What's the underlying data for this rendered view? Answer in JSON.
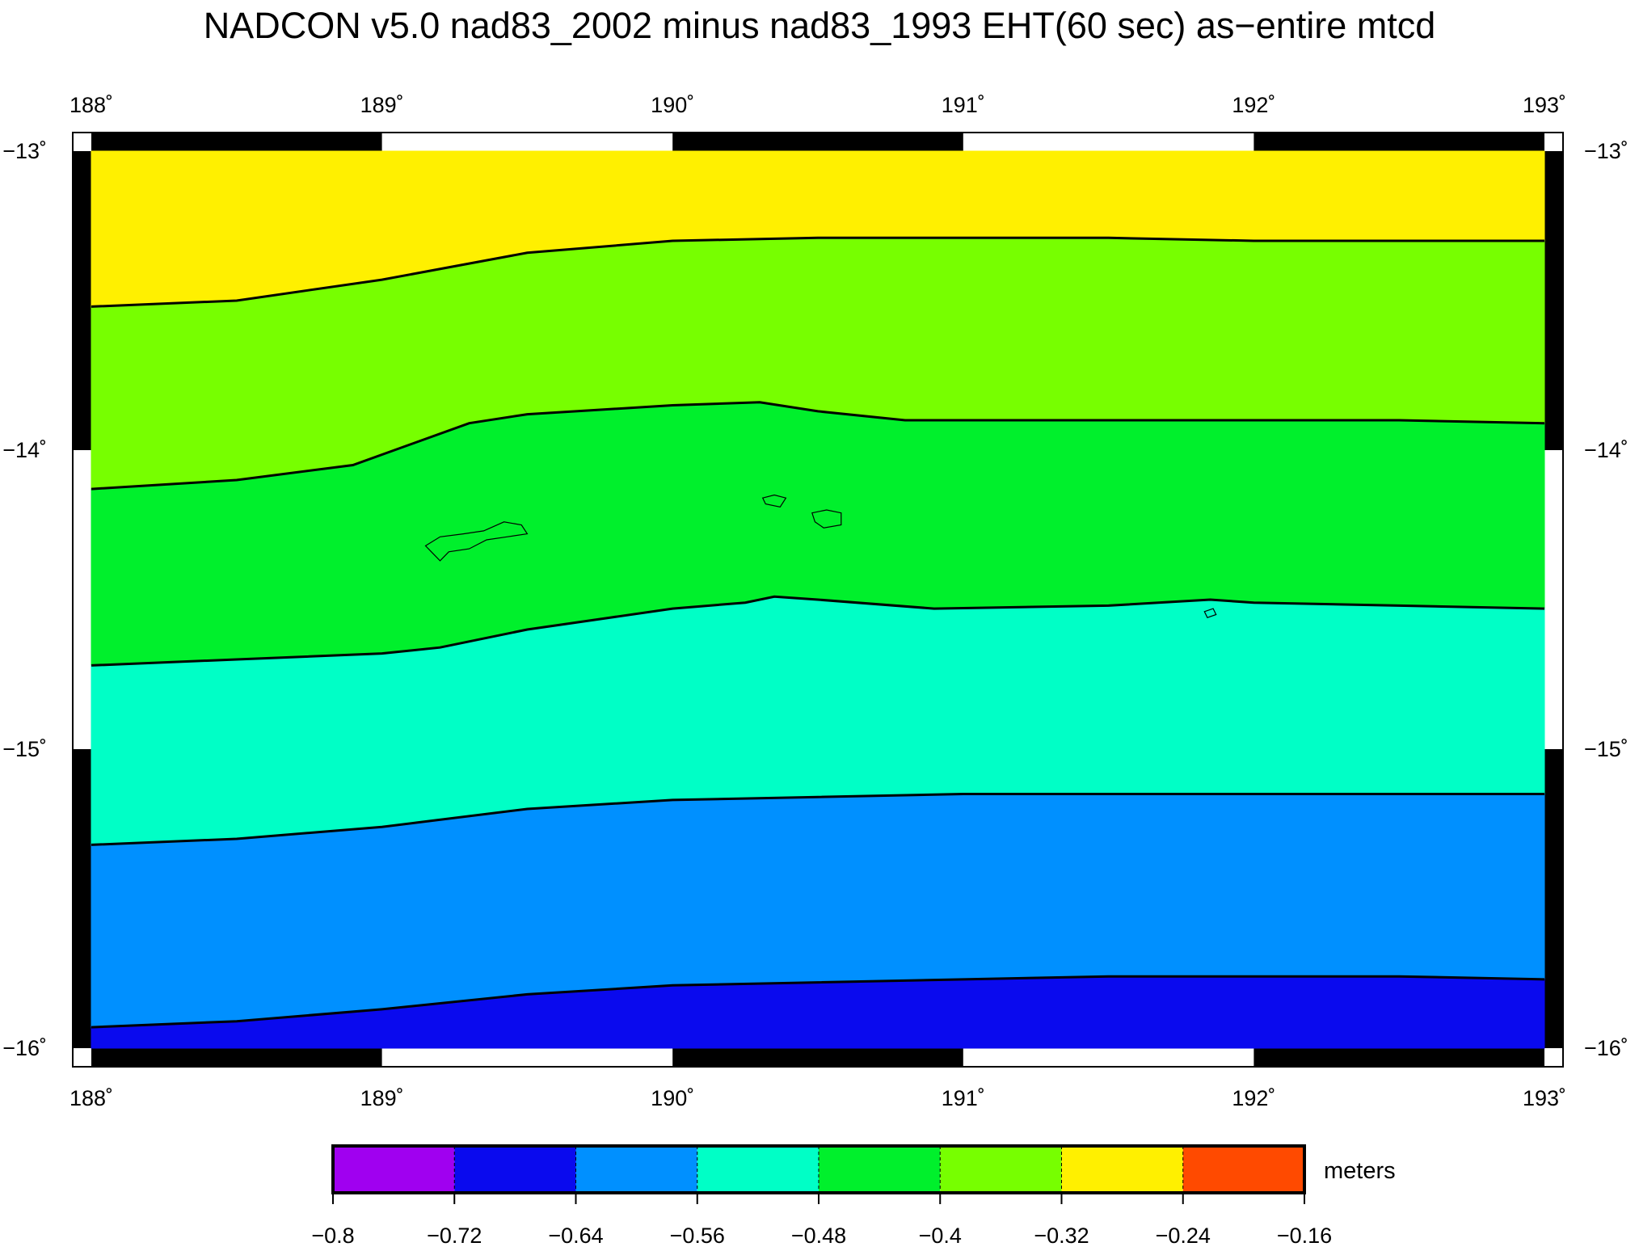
{
  "title": "NADCON v5.0 nad83_2002 minus nad83_1993 EHT(60 sec) as−entire mtcd",
  "map": {
    "lon_range": [
      188,
      193
    ],
    "lat_range": [
      -16,
      -13
    ],
    "lon_ticks": [
      "188˚",
      "189˚",
      "190˚",
      "191˚",
      "192˚",
      "193˚"
    ],
    "lat_ticks": [
      "−13˚",
      "−14˚",
      "−15˚",
      "−16˚"
    ],
    "lat_tick_values": [
      -13,
      -14,
      -15,
      -16
    ],
    "contours": [
      {
        "name": "contour-0",
        "points": [
          [
            188,
            -13.52
          ],
          [
            188.5,
            -13.5
          ],
          [
            189,
            -13.43
          ],
          [
            189.5,
            -13.34
          ],
          [
            190,
            -13.3
          ],
          [
            190.5,
            -13.29
          ],
          [
            191,
            -13.29
          ],
          [
            191.5,
            -13.29
          ],
          [
            192,
            -13.3
          ],
          [
            192.5,
            -13.3
          ],
          [
            193,
            -13.3
          ]
        ]
      },
      {
        "name": "contour-1",
        "points": [
          [
            188,
            -14.13
          ],
          [
            188.5,
            -14.1
          ],
          [
            188.9,
            -14.05
          ],
          [
            189.3,
            -13.91
          ],
          [
            189.5,
            -13.88
          ],
          [
            190,
            -13.85
          ],
          [
            190.3,
            -13.84
          ],
          [
            190.5,
            -13.87
          ],
          [
            190.8,
            -13.9
          ],
          [
            191.5,
            -13.9
          ],
          [
            192,
            -13.9
          ],
          [
            192.5,
            -13.9
          ],
          [
            193,
            -13.91
          ]
        ]
      },
      {
        "name": "contour-2",
        "points": [
          [
            188,
            -14.72
          ],
          [
            188.5,
            -14.7
          ],
          [
            189,
            -14.68
          ],
          [
            189.2,
            -14.66
          ],
          [
            189.5,
            -14.6
          ],
          [
            190,
            -14.53
          ],
          [
            190.25,
            -14.51
          ],
          [
            190.35,
            -14.49
          ],
          [
            190.5,
            -14.5
          ],
          [
            190.9,
            -14.53
          ],
          [
            191.5,
            -14.52
          ],
          [
            191.85,
            -14.5
          ],
          [
            192,
            -14.51
          ],
          [
            192.5,
            -14.52
          ],
          [
            193,
            -14.53
          ]
        ]
      },
      {
        "name": "contour-3",
        "points": [
          [
            188,
            -15.32
          ],
          [
            188.5,
            -15.3
          ],
          [
            189,
            -15.26
          ],
          [
            189.5,
            -15.2
          ],
          [
            190,
            -15.17
          ],
          [
            190.5,
            -15.16
          ],
          [
            191,
            -15.15
          ],
          [
            191.5,
            -15.15
          ],
          [
            192,
            -15.15
          ],
          [
            192.5,
            -15.15
          ],
          [
            193,
            -15.15
          ]
        ]
      },
      {
        "name": "contour-4",
        "points": [
          [
            188,
            -15.93
          ],
          [
            188.5,
            -15.91
          ],
          [
            189,
            -15.87
          ],
          [
            189.5,
            -15.82
          ],
          [
            190,
            -15.79
          ],
          [
            190.5,
            -15.78
          ],
          [
            191,
            -15.77
          ],
          [
            191.5,
            -15.76
          ],
          [
            192,
            -15.76
          ],
          [
            192.5,
            -15.76
          ],
          [
            193,
            -15.77
          ]
        ]
      }
    ],
    "band_colors": [
      "#fff000",
      "#77ff00",
      "#00f02c",
      "#00ffc6",
      "#0090ff",
      "#0a0aee"
    ],
    "islands": [
      {
        "name": "tutuila-island",
        "points": [
          [
            189.15,
            -14.32
          ],
          [
            189.2,
            -14.29
          ],
          [
            189.28,
            -14.28
          ],
          [
            189.35,
            -14.27
          ],
          [
            189.42,
            -14.24
          ],
          [
            189.48,
            -14.25
          ],
          [
            189.5,
            -14.28
          ],
          [
            189.43,
            -14.29
          ],
          [
            189.36,
            -14.3
          ],
          [
            189.3,
            -14.33
          ],
          [
            189.23,
            -14.34
          ],
          [
            189.2,
            -14.37
          ],
          [
            189.17,
            -14.34
          ]
        ]
      },
      {
        "name": "ofu-island",
        "points": [
          [
            190.31,
            -14.16
          ],
          [
            190.35,
            -14.15
          ],
          [
            190.39,
            -14.16
          ],
          [
            190.37,
            -14.19
          ],
          [
            190.32,
            -14.18
          ]
        ]
      },
      {
        "name": "tau-island",
        "points": [
          [
            190.48,
            -14.21
          ],
          [
            190.53,
            -14.2
          ],
          [
            190.58,
            -14.21
          ],
          [
            190.58,
            -14.25
          ],
          [
            190.52,
            -14.26
          ],
          [
            190.49,
            -14.24
          ]
        ]
      },
      {
        "name": "rose-atoll",
        "points": [
          [
            191.83,
            -14.54
          ],
          [
            191.86,
            -14.53
          ],
          [
            191.87,
            -14.55
          ],
          [
            191.84,
            -14.56
          ]
        ]
      }
    ]
  },
  "colorbar": {
    "unit": "meters",
    "tick_labels": [
      "−0.8",
      "−0.72",
      "−0.64",
      "−0.56",
      "−0.48",
      "−0.4",
      "−0.32",
      "−0.24",
      "−0.16"
    ],
    "colors": [
      "#a000f0",
      "#0a0aee",
      "#0090ff",
      "#00ffc6",
      "#00f02c",
      "#77ff00",
      "#fff000",
      "#ff4a00"
    ]
  }
}
